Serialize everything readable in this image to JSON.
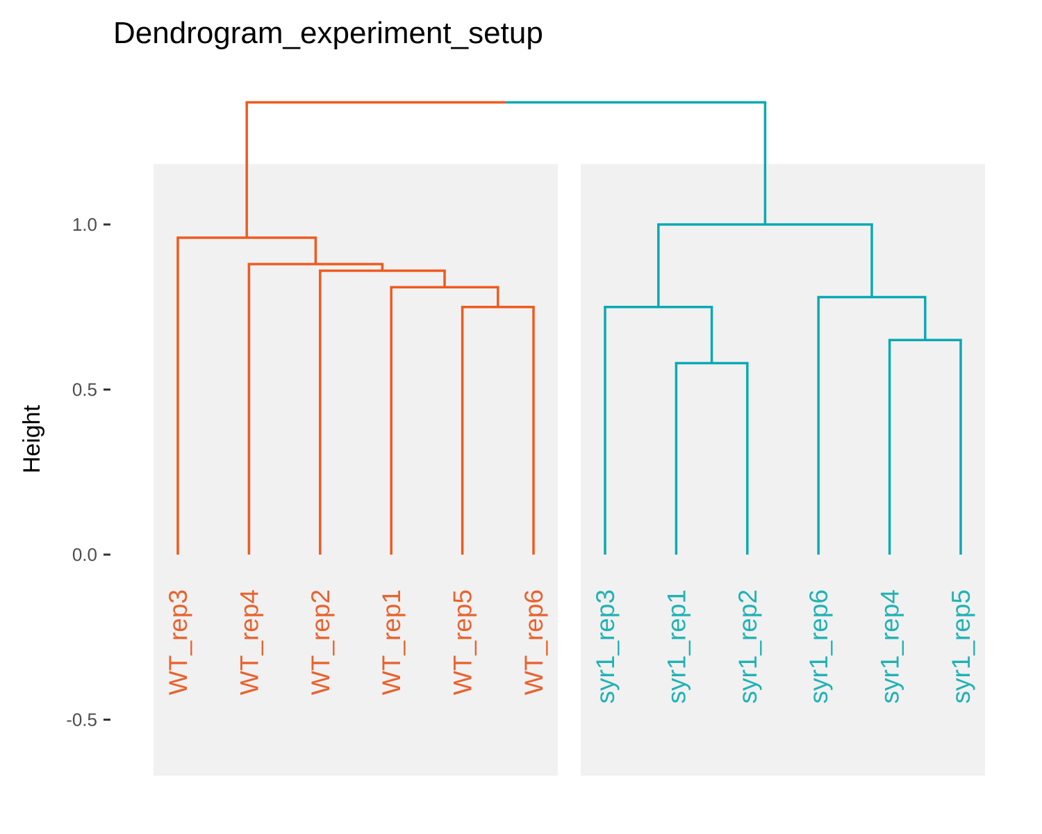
{
  "chart_data": {
    "type": "dendrogram",
    "title": "Dendrogram_experiment_setup",
    "ylabel": "Height",
    "ylim": [
      -0.5,
      1.3
    ],
    "yticks": [
      -0.5,
      0.0,
      0.5,
      1.0
    ],
    "ytick_labels": [
      "-0.5",
      "0.0",
      "0.5",
      "1.0"
    ],
    "grid": false,
    "groups": [
      {
        "label_color": "#e8622e",
        "branch_color": "#ef5a1f",
        "leaves": [
          "WT_rep3",
          "WT_rep4",
          "WT_rep2",
          "WT_rep1",
          "WT_rep5",
          "WT_rep6"
        ]
      },
      {
        "label_color": "#20b2b5",
        "branch_color": "#0aa9b3",
        "leaves": [
          "syr1_rep3",
          "syr1_rep1",
          "syr1_rep2",
          "syr1_rep6",
          "syr1_rep4",
          "syr1_rep5"
        ]
      }
    ],
    "leaves": [
      "WT_rep3",
      "WT_rep4",
      "WT_rep2",
      "WT_rep1",
      "WT_rep5",
      "WT_rep6",
      "syr1_rep3",
      "syr1_rep1",
      "syr1_rep2",
      "syr1_rep6",
      "syr1_rep4",
      "syr1_rep5"
    ],
    "merges": [
      {
        "left": "WT_rep5",
        "right": "WT_rep6",
        "height": 0.75
      },
      {
        "left": "WT_rep1",
        "right": "WT_rep5+WT_rep6",
        "height": 0.81
      },
      {
        "left": "WT_rep2",
        "right": "WT_rep1+WT_rep5+WT_rep6",
        "height": 0.86
      },
      {
        "left": "WT_rep4",
        "right": "WT_rep2+WT_rep1+WT_rep5+WT_rep6",
        "height": 0.88
      },
      {
        "left": "WT_rep3",
        "right": "WT_rep4+WT_rep2+WT_rep1+WT_rep5+WT_rep6",
        "height": 0.96
      },
      {
        "left": "syr1_rep1",
        "right": "syr1_rep2",
        "height": 0.58
      },
      {
        "left": "syr1_rep3",
        "right": "syr1_rep1+syr1_rep2",
        "height": 0.75
      },
      {
        "left": "syr1_rep4",
        "right": "syr1_rep5",
        "height": 0.65
      },
      {
        "left": "syr1_rep6",
        "right": "syr1_rep4+syr1_rep5",
        "height": 0.78
      },
      {
        "left": "syr1 subtree A",
        "right": "syr1 subtree B",
        "height": 1.0
      },
      {
        "left": "WT group",
        "right": "syr1 group",
        "height": 1.37
      }
    ]
  }
}
